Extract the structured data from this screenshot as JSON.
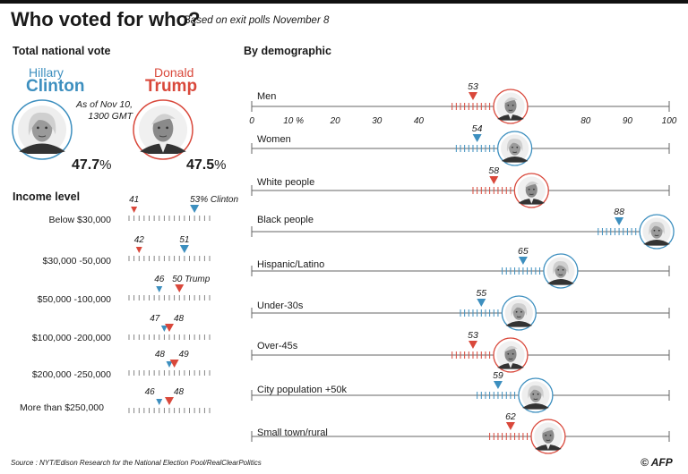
{
  "title": "Who voted for who?",
  "subtitle": "Based on exit polls November 8",
  "national": {
    "heading": "Total national vote",
    "clinton": {
      "first": "Hillary",
      "last": "Clinton",
      "pct": "47.7",
      "unit": "%"
    },
    "trump": {
      "first": "Donald",
      "last": "Trump",
      "pct": "47.5",
      "unit": "%"
    },
    "as_of_line1": "As of Nov 10,",
    "as_of_line2": "1300 GMT"
  },
  "income_heading": "Income level",
  "demographic_heading": "By demographic",
  "source": "Source : NYT/Edison Research for the National Election Pool/RealClearPolitics",
  "logo": "© AFP",
  "colors": {
    "clinton": "#3d8fbf",
    "trump": "#d9483b",
    "axis": "#555555",
    "text": "#1a1a1a"
  },
  "chart_data": [
    {
      "type": "scatter",
      "title": "By demographic",
      "xlim": [
        0,
        100
      ],
      "x_ticks": [
        "0",
        "10 %",
        "20",
        "30",
        "40",
        "80",
        "90",
        "100"
      ],
      "x_tick_values": [
        0,
        10,
        20,
        30,
        40,
        80,
        90,
        100
      ],
      "categories": [
        "Men",
        "Women",
        "White people",
        "Black people",
        "Hispanic/Latino",
        "Under-30s",
        "Over-45s",
        "City population +50k",
        "Small town/rural"
      ],
      "values": [
        53,
        54,
        58,
        88,
        65,
        55,
        53,
        59,
        62
      ],
      "winner": [
        "trump",
        "clinton",
        "trump",
        "clinton",
        "clinton",
        "clinton",
        "trump",
        "clinton",
        "trump"
      ]
    },
    {
      "type": "scatter",
      "title": "Income level",
      "categories": [
        "Below $30,000",
        "$30,000 -50,000",
        "$50,000 -100,000",
        "$100,000 -200,000",
        "$200,000 -250,000",
        "More than $250,000"
      ],
      "clinton": [
        53,
        51,
        46,
        47,
        48,
        46
      ],
      "trump": [
        41,
        42,
        50,
        48,
        49,
        48
      ],
      "point_labels": [
        {
          "trump": "41",
          "clinton": "53% Clinton"
        },
        {
          "trump": "42",
          "clinton": "51"
        },
        {
          "trump": "50 Trump",
          "clinton": "46"
        },
        {
          "trump": "48",
          "clinton": "47"
        },
        {
          "trump": "49",
          "clinton": "48"
        },
        {
          "trump": "48",
          "clinton": "46"
        }
      ]
    }
  ]
}
